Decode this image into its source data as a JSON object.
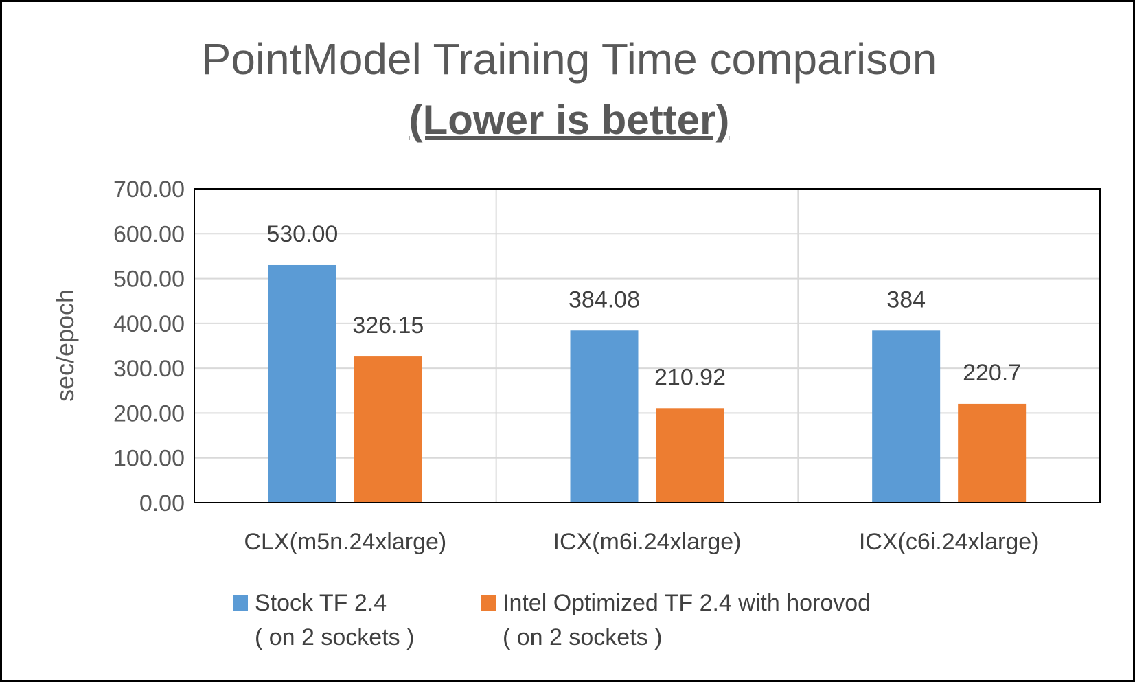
{
  "chart_data": {
    "type": "bar",
    "title": "PointModel Training Time comparison",
    "subtitle": "(Lower is better)",
    "xlabel": "",
    "ylabel": "sec/epoch",
    "ylim": [
      0,
      700
    ],
    "yticks": [
      "0.00",
      "100.00",
      "200.00",
      "300.00",
      "400.00",
      "500.00",
      "600.00",
      "700.00"
    ],
    "categories": [
      "CLX(m5n.24xlarge)",
      "ICX(m6i.24xlarge)",
      "ICX(c6i.24xlarge)"
    ],
    "series": [
      {
        "name": "Stock TF 2.4",
        "name_line2": "( on 2 sockets )",
        "color": "#5B9BD5",
        "values": [
          530.0,
          384.08,
          384
        ],
        "labels": [
          "530.00",
          "384.08",
          "384"
        ]
      },
      {
        "name": "Intel Optimized TF 2.4 with horovod",
        "name_line2": "( on 2 sockets )",
        "color": "#ED7D31",
        "values": [
          326.15,
          210.92,
          220.7
        ],
        "labels": [
          "326.15",
          "210.92",
          "220.7"
        ]
      }
    ],
    "grid": true,
    "legend_position": "bottom"
  }
}
